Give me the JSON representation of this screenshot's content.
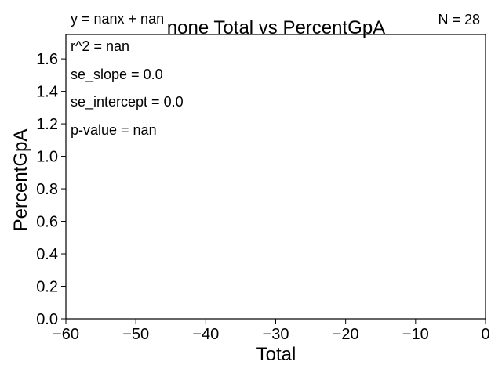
{
  "chart_data": {
    "type": "scatter",
    "title": "none Total vs PercentGpA",
    "xlabel": "Total",
    "ylabel": "PercentGpA",
    "xlim": [
      -60,
      0
    ],
    "ylim": [
      0.0,
      1.75
    ],
    "x_ticks": [
      -60,
      -50,
      -40,
      -30,
      -20,
      -10,
      0
    ],
    "x_tick_labels": [
      "−60",
      "−50",
      "−40",
      "−30",
      "−20",
      "−10",
      "0"
    ],
    "y_ticks": [
      0.0,
      0.2,
      0.4,
      0.6,
      0.8,
      1.0,
      1.2,
      1.4,
      1.6
    ],
    "y_tick_labels": [
      "0.0",
      "0.2",
      "0.4",
      "0.6",
      "0.8",
      "1.0",
      "1.2",
      "1.4",
      "1.6"
    ],
    "points": [],
    "grid": false,
    "annotations": {
      "equation": "y = nanx + nan",
      "n": "N = 28",
      "r2": "r^2 = nan",
      "se_slope": "se_slope = 0.0",
      "se_intercept": "se_intercept = 0.0",
      "p_value": "p-value = nan"
    }
  }
}
